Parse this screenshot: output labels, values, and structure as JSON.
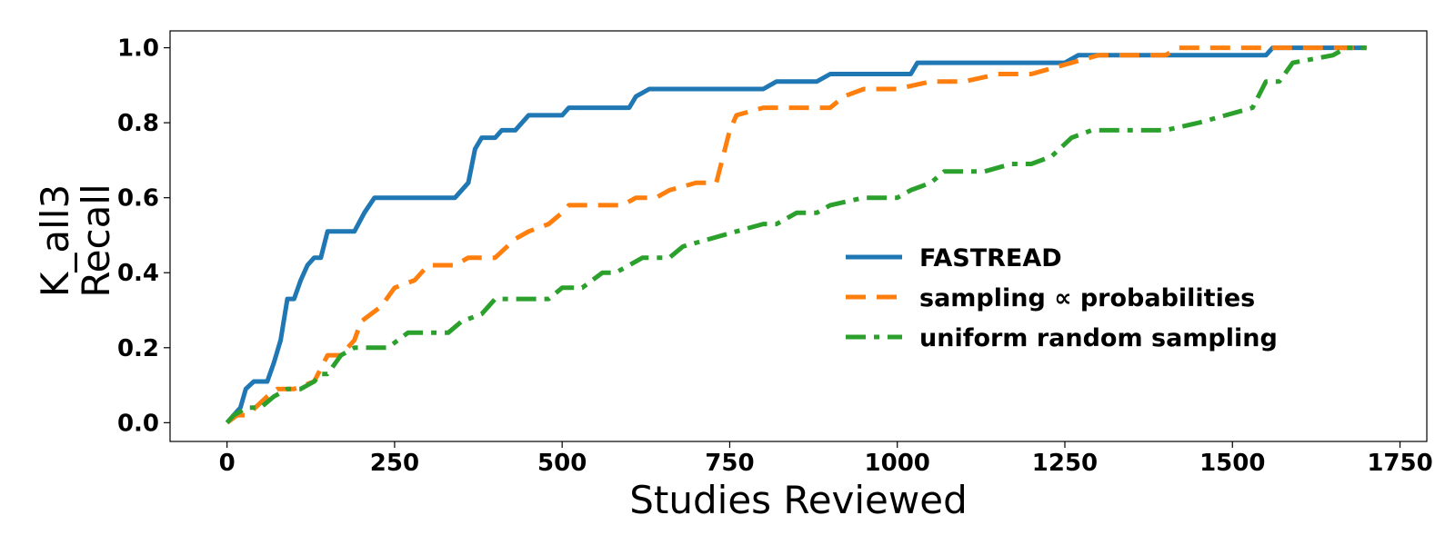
{
  "chart_data": {
    "type": "line",
    "title": "",
    "xlabel": "Studies Reviewed",
    "ylabel_lines": [
      "K_all3",
      "Recall"
    ],
    "xlim": [
      -85,
      1790
    ],
    "ylim": [
      -0.05,
      1.045
    ],
    "xticks": [
      0,
      250,
      500,
      750,
      1000,
      1250,
      1500,
      1750
    ],
    "yticks": [
      0.0,
      0.2,
      0.4,
      0.6,
      0.8,
      1.0
    ],
    "ytick_labels": [
      "0.0",
      "0.2",
      "0.4",
      "0.6",
      "0.8",
      "1.0"
    ],
    "grid": false,
    "legend_position": "center-right",
    "series": [
      {
        "name": "FASTREAD",
        "color": "#1f77b4",
        "dash": "solid",
        "x": [
          0,
          20,
          28,
          40,
          60,
          70,
          80,
          90,
          100,
          110,
          120,
          130,
          140,
          150,
          170,
          190,
          205,
          220,
          260,
          300,
          340,
          360,
          370,
          380,
          400,
          410,
          430,
          450,
          470,
          500,
          510,
          550,
          600,
          610,
          630,
          700,
          800,
          820,
          850,
          880,
          900,
          1020,
          1030,
          1100,
          1250,
          1270,
          1320,
          1500,
          1550,
          1560,
          1700
        ],
        "y": [
          0,
          0.04,
          0.09,
          0.11,
          0.11,
          0.16,
          0.22,
          0.33,
          0.33,
          0.38,
          0.42,
          0.44,
          0.44,
          0.51,
          0.51,
          0.51,
          0.56,
          0.6,
          0.6,
          0.6,
          0.6,
          0.64,
          0.73,
          0.76,
          0.76,
          0.78,
          0.78,
          0.82,
          0.82,
          0.82,
          0.84,
          0.84,
          0.84,
          0.87,
          0.89,
          0.89,
          0.89,
          0.91,
          0.91,
          0.91,
          0.93,
          0.93,
          0.96,
          0.96,
          0.96,
          0.98,
          0.98,
          0.98,
          0.98,
          1.0,
          1.0
        ]
      },
      {
        "name": "sampling ∝ probabilities",
        "color": "#ff7f0e",
        "dash": "dashed",
        "x": [
          0,
          15,
          30,
          60,
          75,
          100,
          130,
          150,
          170,
          190,
          200,
          230,
          250,
          280,
          300,
          320,
          340,
          360,
          380,
          400,
          430,
          450,
          480,
          500,
          510,
          550,
          590,
          610,
          640,
          660,
          700,
          730,
          740,
          750,
          760,
          800,
          850,
          900,
          920,
          950,
          1000,
          1050,
          1100,
          1150,
          1200,
          1260,
          1300,
          1400,
          1420,
          1500,
          1600,
          1700
        ],
        "y": [
          0,
          0.02,
          0.02,
          0.07,
          0.09,
          0.09,
          0.11,
          0.18,
          0.18,
          0.22,
          0.27,
          0.31,
          0.36,
          0.38,
          0.42,
          0.42,
          0.42,
          0.44,
          0.44,
          0.44,
          0.49,
          0.51,
          0.53,
          0.56,
          0.58,
          0.58,
          0.58,
          0.6,
          0.6,
          0.62,
          0.64,
          0.64,
          0.71,
          0.78,
          0.82,
          0.84,
          0.84,
          0.84,
          0.87,
          0.89,
          0.89,
          0.91,
          0.91,
          0.93,
          0.93,
          0.96,
          0.98,
          0.98,
          1.0,
          1.0,
          1.0,
          1.0
        ]
      },
      {
        "name": "uniform random sampling",
        "color": "#2ca02c",
        "dash": "dashdot",
        "x": [
          0,
          10,
          30,
          50,
          70,
          90,
          110,
          130,
          140,
          150,
          170,
          190,
          240,
          270,
          290,
          330,
          350,
          380,
          390,
          400,
          420,
          450,
          480,
          500,
          530,
          560,
          580,
          600,
          620,
          660,
          680,
          720,
          760,
          800,
          820,
          850,
          880,
          900,
          950,
          1000,
          1020,
          1050,
          1070,
          1100,
          1130,
          1170,
          1200,
          1230,
          1260,
          1290,
          1330,
          1400,
          1450,
          1490,
          1530,
          1550,
          1570,
          1590,
          1650,
          1670,
          1700
        ],
        "y": [
          0,
          0.02,
          0.04,
          0.04,
          0.07,
          0.09,
          0.09,
          0.11,
          0.13,
          0.13,
          0.18,
          0.2,
          0.2,
          0.24,
          0.24,
          0.24,
          0.27,
          0.29,
          0.31,
          0.33,
          0.33,
          0.33,
          0.33,
          0.36,
          0.36,
          0.4,
          0.4,
          0.42,
          0.44,
          0.44,
          0.47,
          0.49,
          0.51,
          0.53,
          0.53,
          0.56,
          0.56,
          0.58,
          0.6,
          0.6,
          0.62,
          0.64,
          0.67,
          0.67,
          0.67,
          0.69,
          0.69,
          0.71,
          0.76,
          0.78,
          0.78,
          0.78,
          0.8,
          0.82,
          0.84,
          0.91,
          0.91,
          0.96,
          0.98,
          1.0,
          1.0
        ]
      }
    ]
  }
}
